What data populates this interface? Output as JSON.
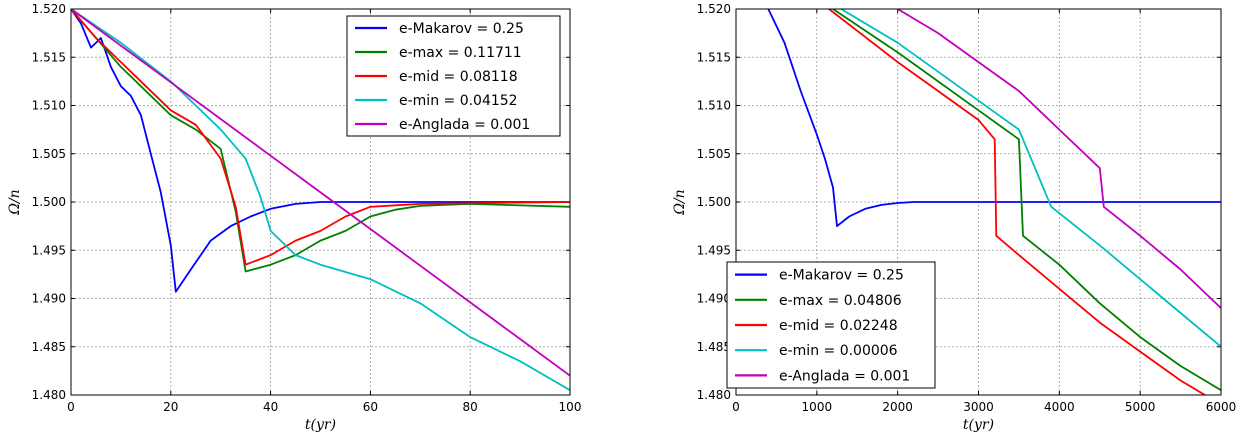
{
  "chart_data": [
    {
      "type": "line",
      "xlabel": "t(yr)",
      "ylabel": "Ω/n",
      "xlim": [
        0,
        100
      ],
      "ylim": [
        1.48,
        1.52
      ],
      "xticks": [
        "0",
        "20",
        "40",
        "60",
        "80",
        "100"
      ],
      "yticks": [
        "1.480",
        "1.485",
        "1.490",
        "1.495",
        "1.500",
        "1.505",
        "1.510",
        "1.515",
        "1.520"
      ],
      "grid": true,
      "legend": "top-right",
      "series": [
        {
          "name": "e-Makarov = 0.25",
          "color": "#0000ff",
          "points": [
            [
              0,
              1.52
            ],
            [
              2,
              1.5185
            ],
            [
              4,
              1.516
            ],
            [
              6,
              1.517
            ],
            [
              8,
              1.514
            ],
            [
              10,
              1.512
            ],
            [
              12,
              1.511
            ],
            [
              14,
              1.509
            ],
            [
              16,
              1.505
            ],
            [
              18,
              1.501
            ],
            [
              20,
              1.4955
            ],
            [
              21,
              1.4907
            ],
            [
              24,
              1.493
            ],
            [
              28,
              1.496
            ],
            [
              32,
              1.4975
            ],
            [
              36,
              1.4985
            ],
            [
              40,
              1.4993
            ],
            [
              45,
              1.4998
            ],
            [
              50,
              1.5
            ],
            [
              60,
              1.5
            ],
            [
              100,
              1.5
            ]
          ]
        },
        {
          "name": "e-max = 0.11711",
          "color": "#008000",
          "points": [
            [
              0,
              1.52
            ],
            [
              5,
              1.517
            ],
            [
              10,
              1.514
            ],
            [
              15,
              1.5115
            ],
            [
              20,
              1.509
            ],
            [
              25,
              1.5075
            ],
            [
              30,
              1.5055
            ],
            [
              33,
              1.499
            ],
            [
              35,
              1.4928
            ],
            [
              40,
              1.4935
            ],
            [
              45,
              1.4945
            ],
            [
              50,
              1.496
            ],
            [
              55,
              1.497
            ],
            [
              60,
              1.4985
            ],
            [
              65,
              1.4992
            ],
            [
              70,
              1.4996
            ],
            [
              80,
              1.4998
            ],
            [
              100,
              1.4995
            ]
          ]
        },
        {
          "name": "e-mid = 0.08118",
          "color": "#ff0000",
          "points": [
            [
              0,
              1.52
            ],
            [
              5,
              1.517
            ],
            [
              10,
              1.5145
            ],
            [
              15,
              1.512
            ],
            [
              20,
              1.5095
            ],
            [
              25,
              1.508
            ],
            [
              30,
              1.5045
            ],
            [
              33,
              1.4995
            ],
            [
              35,
              1.4935
            ],
            [
              40,
              1.4945
            ],
            [
              45,
              1.496
            ],
            [
              50,
              1.497
            ],
            [
              55,
              1.4985
            ],
            [
              60,
              1.4995
            ],
            [
              70,
              1.4998
            ],
            [
              100,
              1.5
            ]
          ]
        },
        {
          "name": "e-min = 0.04152",
          "color": "#00bfbf",
          "points": [
            [
              0,
              1.52
            ],
            [
              10,
              1.5165
            ],
            [
              20,
              1.5125
            ],
            [
              30,
              1.5075
            ],
            [
              35,
              1.5045
            ],
            [
              38,
              1.5005
            ],
            [
              40,
              1.497
            ],
            [
              45,
              1.4945
            ],
            [
              50,
              1.4935
            ],
            [
              60,
              1.492
            ],
            [
              70,
              1.4895
            ],
            [
              80,
              1.486
            ],
            [
              90,
              1.4835
            ],
            [
              100,
              1.4805
            ]
          ]
        },
        {
          "name": "e-Anglada = 0.001",
          "color": "#bf00bf",
          "points": [
            [
              0,
              1.52
            ],
            [
              10,
              1.5162
            ],
            [
              20,
              1.5124
            ],
            [
              30,
              1.5086
            ],
            [
              40,
              1.5048
            ],
            [
              50,
              1.501
            ],
            [
              60,
              1.4972
            ],
            [
              70,
              1.4934
            ],
            [
              80,
              1.4896
            ],
            [
              90,
              1.4858
            ],
            [
              100,
              1.482
            ]
          ]
        }
      ]
    },
    {
      "type": "line",
      "xlabel": "t(yr)",
      "ylabel": "Ω/n",
      "xlim": [
        0,
        6000
      ],
      "ylim": [
        1.48,
        1.52
      ],
      "xticks": [
        "0",
        "1000",
        "2000",
        "3000",
        "4000",
        "5000",
        "6000"
      ],
      "yticks": [
        "1.480",
        "1.485",
        "1.490",
        "1.495",
        "1.500",
        "1.505",
        "1.510",
        "1.515",
        "1.520"
      ],
      "grid": true,
      "legend": "bottom-left",
      "series": [
        {
          "name": "e-Makarov = 0.25",
          "color": "#0000ff",
          "points": [
            [
              400,
              1.52
            ],
            [
              600,
              1.5165
            ],
            [
              800,
              1.5115
            ],
            [
              1000,
              1.507
            ],
            [
              1100,
              1.5045
            ],
            [
              1200,
              1.5015
            ],
            [
              1250,
              1.4975
            ],
            [
              1400,
              1.4985
            ],
            [
              1600,
              1.4993
            ],
            [
              1800,
              1.4997
            ],
            [
              2000,
              1.4999
            ],
            [
              2200,
              1.5
            ],
            [
              3000,
              1.5
            ],
            [
              6000,
              1.5
            ]
          ]
        },
        {
          "name": "e-max = 0.04806",
          "color": "#008000",
          "points": [
            [
              1200,
              1.52
            ],
            [
              2000,
              1.5155
            ],
            [
              2500,
              1.5125
            ],
            [
              3000,
              1.5095
            ],
            [
              3500,
              1.5065
            ],
            [
              3550,
              1.4965
            ],
            [
              4000,
              1.4935
            ],
            [
              4500,
              1.4895
            ],
            [
              5000,
              1.486
            ],
            [
              5500,
              1.483
            ],
            [
              6000,
              1.4805
            ]
          ]
        },
        {
          "name": "e-mid = 0.02248",
          "color": "#ff0000",
          "points": [
            [
              1150,
              1.52
            ],
            [
              2000,
              1.5145
            ],
            [
              2500,
              1.5115
            ],
            [
              3000,
              1.5085
            ],
            [
              3200,
              1.5065
            ],
            [
              3220,
              1.4965
            ],
            [
              3500,
              1.4945
            ],
            [
              4000,
              1.491
            ],
            [
              4500,
              1.4875
            ],
            [
              5000,
              1.4845
            ],
            [
              5500,
              1.4815
            ],
            [
              5900,
              1.4795
            ]
          ]
        },
        {
          "name": "e-min = 0.00006",
          "color": "#00bfbf",
          "points": [
            [
              1300,
              1.52
            ],
            [
              2000,
              1.5165
            ],
            [
              2500,
              1.5135
            ],
            [
              3000,
              1.5105
            ],
            [
              3500,
              1.5075
            ],
            [
              3850,
              1.5005
            ],
            [
              3900,
              1.4995
            ],
            [
              4500,
              1.4955
            ],
            [
              5000,
              1.492
            ],
            [
              5500,
              1.4885
            ],
            [
              6000,
              1.485
            ]
          ]
        },
        {
          "name": "e-Anglada = 0.001",
          "color": "#bf00bf",
          "points": [
            [
              2000,
              1.52
            ],
            [
              2500,
              1.5175
            ],
            [
              3000,
              1.5145
            ],
            [
              3500,
              1.5115
            ],
            [
              4000,
              1.5075
            ],
            [
              4500,
              1.5035
            ],
            [
              4550,
              1.4995
            ],
            [
              5000,
              1.4965
            ],
            [
              5500,
              1.493
            ],
            [
              6000,
              1.489
            ]
          ]
        }
      ]
    }
  ]
}
